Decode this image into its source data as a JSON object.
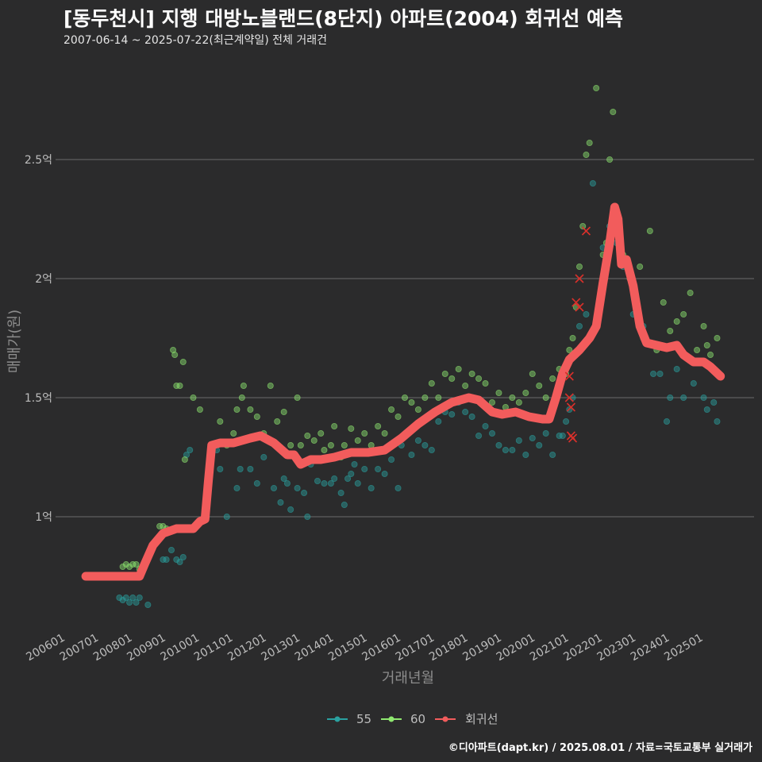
{
  "header": {
    "title": "[동두천시] 지행 대방노블랜드(8단지) 아파트(2004) 회귀선 예측",
    "subtitle": "2007-06-14 ~ 2025-07-22(최근계약일) 전체 거래건"
  },
  "footer": {
    "credit": "©디아파트(dapt.kr) / 2025.08.01 / 자료=국토교통부 실거래가"
  },
  "colors": {
    "background": "#2b2b2c",
    "grid": "#6b6b6b",
    "s55": "#2aa1a0",
    "s60": "#8fe870",
    "trend": "#f25c5c"
  },
  "chart_data": {
    "type": "scatter",
    "title": "[동두천시] 지행 대방노블랜드(8단지) 아파트(2004) 회귀선 예측",
    "xlabel": "거래년월",
    "ylabel": "매매가(원)",
    "xlim": [
      2005.7,
      2026.5
    ],
    "ylim": [
      0.52,
      2.87
    ],
    "y_unit": "억",
    "yticks": [
      {
        "value": 1.0,
        "label": "1억"
      },
      {
        "value": 1.5,
        "label": "1.5억"
      },
      {
        "value": 2.0,
        "label": "2억"
      },
      {
        "value": 2.5,
        "label": "2.5억"
      }
    ],
    "xticks": [
      {
        "value": 2006.0,
        "label": "200601"
      },
      {
        "value": 2007.0,
        "label": "200701"
      },
      {
        "value": 2008.0,
        "label": "200801"
      },
      {
        "value": 2009.0,
        "label": "200901"
      },
      {
        "value": 2010.0,
        "label": "201001"
      },
      {
        "value": 2011.0,
        "label": "201101"
      },
      {
        "value": 2012.0,
        "label": "201201"
      },
      {
        "value": 2013.0,
        "label": "201301"
      },
      {
        "value": 2014.0,
        "label": "201401"
      },
      {
        "value": 2015.0,
        "label": "201501"
      },
      {
        "value": 2016.0,
        "label": "201601"
      },
      {
        "value": 2017.0,
        "label": "201701"
      },
      {
        "value": 2018.0,
        "label": "201801"
      },
      {
        "value": 2019.0,
        "label": "201901"
      },
      {
        "value": 2020.0,
        "label": "202001"
      },
      {
        "value": 2021.0,
        "label": "202101"
      },
      {
        "value": 2022.0,
        "label": "202201"
      },
      {
        "value": 2023.0,
        "label": "202301"
      },
      {
        "value": 2024.0,
        "label": "202401"
      },
      {
        "value": 2025.0,
        "label": "202501"
      }
    ],
    "legend": [
      {
        "name": "55",
        "color": "#2aa1a0"
      },
      {
        "name": "60",
        "color": "#8fe870"
      },
      {
        "name": "회귀선",
        "color": "#f25c5c"
      }
    ],
    "series": [
      {
        "name": "55",
        "points": [
          [
            2007.6,
            0.66
          ],
          [
            2007.7,
            0.65
          ],
          [
            2007.8,
            0.66
          ],
          [
            2007.9,
            0.64
          ],
          [
            2008.0,
            0.66
          ],
          [
            2008.1,
            0.64
          ],
          [
            2008.2,
            0.66
          ],
          [
            2008.45,
            0.63
          ],
          [
            2008.9,
            0.82
          ],
          [
            2009.0,
            0.82
          ],
          [
            2009.15,
            0.86
          ],
          [
            2009.3,
            0.82
          ],
          [
            2009.4,
            0.81
          ],
          [
            2009.5,
            0.83
          ],
          [
            2009.6,
            1.26
          ],
          [
            2009.7,
            1.28
          ],
          [
            2010.5,
            1.28
          ],
          [
            2010.6,
            1.2
          ],
          [
            2010.8,
            1.0
          ],
          [
            2011.1,
            1.12
          ],
          [
            2011.2,
            1.2
          ],
          [
            2011.5,
            1.2
          ],
          [
            2011.7,
            1.14
          ],
          [
            2011.9,
            1.25
          ],
          [
            2012.2,
            1.12
          ],
          [
            2012.4,
            1.06
          ],
          [
            2012.5,
            1.16
          ],
          [
            2012.6,
            1.14
          ],
          [
            2012.7,
            1.03
          ],
          [
            2012.9,
            1.12
          ],
          [
            2013.1,
            1.1
          ],
          [
            2013.2,
            1.0
          ],
          [
            2013.3,
            1.22
          ],
          [
            2013.5,
            1.15
          ],
          [
            2013.7,
            1.14
          ],
          [
            2013.9,
            1.14
          ],
          [
            2014.0,
            1.16
          ],
          [
            2014.2,
            1.1
          ],
          [
            2014.3,
            1.05
          ],
          [
            2014.4,
            1.16
          ],
          [
            2014.5,
            1.18
          ],
          [
            2014.6,
            1.22
          ],
          [
            2014.7,
            1.14
          ],
          [
            2014.9,
            1.2
          ],
          [
            2015.1,
            1.12
          ],
          [
            2015.3,
            1.2
          ],
          [
            2015.5,
            1.18
          ],
          [
            2015.7,
            1.24
          ],
          [
            2015.9,
            1.12
          ],
          [
            2016.0,
            1.3
          ],
          [
            2016.3,
            1.26
          ],
          [
            2016.5,
            1.32
          ],
          [
            2016.7,
            1.3
          ],
          [
            2016.9,
            1.28
          ],
          [
            2017.1,
            1.4
          ],
          [
            2017.3,
            1.44
          ],
          [
            2017.5,
            1.43
          ],
          [
            2017.7,
            1.48
          ],
          [
            2017.9,
            1.44
          ],
          [
            2018.1,
            1.42
          ],
          [
            2018.3,
            1.34
          ],
          [
            2018.5,
            1.38
          ],
          [
            2018.7,
            1.35
          ],
          [
            2018.9,
            1.3
          ],
          [
            2019.1,
            1.28
          ],
          [
            2019.3,
            1.28
          ],
          [
            2019.5,
            1.32
          ],
          [
            2019.7,
            1.26
          ],
          [
            2019.9,
            1.33
          ],
          [
            2020.1,
            1.3
          ],
          [
            2020.3,
            1.35
          ],
          [
            2020.5,
            1.26
          ],
          [
            2020.7,
            1.34
          ],
          [
            2020.8,
            1.34
          ],
          [
            2020.9,
            1.4
          ],
          [
            2021.0,
            1.45
          ],
          [
            2021.1,
            1.5
          ],
          [
            2021.3,
            1.8
          ],
          [
            2021.5,
            1.85
          ],
          [
            2021.7,
            2.4
          ],
          [
            2022.0,
            2.13
          ],
          [
            2022.2,
            2.22
          ],
          [
            2022.4,
            2.15
          ],
          [
            2022.6,
            2.05
          ],
          [
            2022.9,
            1.85
          ],
          [
            2023.2,
            1.8
          ],
          [
            2023.5,
            1.6
          ],
          [
            2023.7,
            1.6
          ],
          [
            2023.9,
            1.4
          ],
          [
            2024.0,
            1.5
          ],
          [
            2024.2,
            1.62
          ],
          [
            2024.4,
            1.5
          ],
          [
            2024.7,
            1.56
          ],
          [
            2025.0,
            1.5
          ],
          [
            2025.1,
            1.45
          ],
          [
            2025.3,
            1.48
          ],
          [
            2025.4,
            1.4
          ]
        ]
      },
      {
        "name": "60",
        "points": [
          [
            2007.7,
            0.79
          ],
          [
            2007.8,
            0.8
          ],
          [
            2007.9,
            0.79
          ],
          [
            2008.0,
            0.8
          ],
          [
            2008.1,
            0.8
          ],
          [
            2008.2,
            0.78
          ],
          [
            2008.3,
            0.79
          ],
          [
            2008.8,
            0.96
          ],
          [
            2008.9,
            0.96
          ],
          [
            2009.0,
            0.95
          ],
          [
            2009.2,
            1.7
          ],
          [
            2009.25,
            1.68
          ],
          [
            2009.3,
            1.55
          ],
          [
            2009.4,
            1.55
          ],
          [
            2009.5,
            1.65
          ],
          [
            2009.55,
            1.24
          ],
          [
            2009.8,
            1.5
          ],
          [
            2010.0,
            1.45
          ],
          [
            2010.6,
            1.4
          ],
          [
            2010.8,
            1.3
          ],
          [
            2011.0,
            1.35
          ],
          [
            2011.1,
            1.45
          ],
          [
            2011.25,
            1.5
          ],
          [
            2011.3,
            1.55
          ],
          [
            2011.5,
            1.45
          ],
          [
            2011.7,
            1.42
          ],
          [
            2011.9,
            1.35
          ],
          [
            2012.1,
            1.55
          ],
          [
            2012.3,
            1.4
          ],
          [
            2012.5,
            1.44
          ],
          [
            2012.7,
            1.3
          ],
          [
            2012.9,
            1.5
          ],
          [
            2013.0,
            1.3
          ],
          [
            2013.2,
            1.34
          ],
          [
            2013.4,
            1.32
          ],
          [
            2013.6,
            1.35
          ],
          [
            2013.7,
            1.28
          ],
          [
            2013.9,
            1.3
          ],
          [
            2014.0,
            1.38
          ],
          [
            2014.2,
            1.25
          ],
          [
            2014.3,
            1.3
          ],
          [
            2014.5,
            1.37
          ],
          [
            2014.7,
            1.32
          ],
          [
            2014.9,
            1.35
          ],
          [
            2015.1,
            1.3
          ],
          [
            2015.3,
            1.38
          ],
          [
            2015.5,
            1.35
          ],
          [
            2015.7,
            1.45
          ],
          [
            2015.9,
            1.42
          ],
          [
            2016.1,
            1.5
          ],
          [
            2016.3,
            1.48
          ],
          [
            2016.5,
            1.45
          ],
          [
            2016.7,
            1.5
          ],
          [
            2016.9,
            1.56
          ],
          [
            2017.1,
            1.5
          ],
          [
            2017.3,
            1.6
          ],
          [
            2017.5,
            1.58
          ],
          [
            2017.7,
            1.62
          ],
          [
            2017.9,
            1.55
          ],
          [
            2018.1,
            1.6
          ],
          [
            2018.3,
            1.58
          ],
          [
            2018.5,
            1.56
          ],
          [
            2018.7,
            1.48
          ],
          [
            2018.9,
            1.52
          ],
          [
            2019.1,
            1.46
          ],
          [
            2019.3,
            1.5
          ],
          [
            2019.5,
            1.48
          ],
          [
            2019.7,
            1.52
          ],
          [
            2019.9,
            1.6
          ],
          [
            2020.1,
            1.55
          ],
          [
            2020.3,
            1.5
          ],
          [
            2020.5,
            1.58
          ],
          [
            2020.7,
            1.62
          ],
          [
            2020.9,
            1.6
          ],
          [
            2021.0,
            1.7
          ],
          [
            2021.1,
            1.75
          ],
          [
            2021.2,
            1.88
          ],
          [
            2021.3,
            2.05
          ],
          [
            2021.4,
            2.22
          ],
          [
            2021.5,
            2.52
          ],
          [
            2021.6,
            2.57
          ],
          [
            2021.8,
            2.8
          ],
          [
            2022.0,
            2.1
          ],
          [
            2022.1,
            2.15
          ],
          [
            2022.2,
            2.5
          ],
          [
            2022.3,
            2.7
          ],
          [
            2022.4,
            2.24
          ],
          [
            2022.6,
            2.1
          ],
          [
            2022.8,
            2.0
          ],
          [
            2023.0,
            1.9
          ],
          [
            2023.1,
            2.05
          ],
          [
            2023.2,
            1.75
          ],
          [
            2023.4,
            2.2
          ],
          [
            2023.6,
            1.7
          ],
          [
            2023.8,
            1.9
          ],
          [
            2024.0,
            1.78
          ],
          [
            2024.2,
            1.82
          ],
          [
            2024.4,
            1.85
          ],
          [
            2024.6,
            1.94
          ],
          [
            2024.8,
            1.7
          ],
          [
            2025.0,
            1.8
          ],
          [
            2025.1,
            1.72
          ],
          [
            2025.2,
            1.68
          ],
          [
            2025.4,
            1.75
          ]
        ]
      }
    ],
    "trend": [
      [
        2006.6,
        0.75
      ],
      [
        2007.0,
        0.75
      ],
      [
        2007.5,
        0.75
      ],
      [
        2008.0,
        0.75
      ],
      [
        2008.2,
        0.75
      ],
      [
        2008.35,
        0.8
      ],
      [
        2008.6,
        0.88
      ],
      [
        2008.9,
        0.93
      ],
      [
        2009.3,
        0.95
      ],
      [
        2009.8,
        0.95
      ],
      [
        2010.0,
        0.98
      ],
      [
        2010.15,
        0.99
      ],
      [
        2010.25,
        1.15
      ],
      [
        2010.35,
        1.3
      ],
      [
        2010.6,
        1.31
      ],
      [
        2011.0,
        1.31
      ],
      [
        2011.5,
        1.33
      ],
      [
        2011.8,
        1.34
      ],
      [
        2012.2,
        1.31
      ],
      [
        2012.6,
        1.26
      ],
      [
        2012.8,
        1.26
      ],
      [
        2013.0,
        1.22
      ],
      [
        2013.3,
        1.24
      ],
      [
        2013.6,
        1.24
      ],
      [
        2014.0,
        1.25
      ],
      [
        2014.5,
        1.27
      ],
      [
        2015.0,
        1.27
      ],
      [
        2015.5,
        1.28
      ],
      [
        2016.0,
        1.33
      ],
      [
        2016.5,
        1.39
      ],
      [
        2017.0,
        1.44
      ],
      [
        2017.5,
        1.48
      ],
      [
        2018.0,
        1.5
      ],
      [
        2018.3,
        1.49
      ],
      [
        2018.7,
        1.44
      ],
      [
        2019.0,
        1.43
      ],
      [
        2019.4,
        1.44
      ],
      [
        2019.8,
        1.42
      ],
      [
        2020.2,
        1.41
      ],
      [
        2020.4,
        1.41
      ],
      [
        2020.6,
        1.5
      ],
      [
        2020.8,
        1.6
      ],
      [
        2021.0,
        1.66
      ],
      [
        2021.3,
        1.7
      ],
      [
        2021.6,
        1.75
      ],
      [
        2021.8,
        1.8
      ],
      [
        2022.0,
        1.98
      ],
      [
        2022.2,
        2.15
      ],
      [
        2022.35,
        2.3
      ],
      [
        2022.45,
        2.25
      ],
      [
        2022.55,
        2.06
      ],
      [
        2022.7,
        2.08
      ],
      [
        2022.9,
        1.97
      ],
      [
        2023.1,
        1.8
      ],
      [
        2023.3,
        1.73
      ],
      [
        2023.6,
        1.72
      ],
      [
        2023.9,
        1.71
      ],
      [
        2024.2,
        1.72
      ],
      [
        2024.4,
        1.68
      ],
      [
        2024.7,
        1.65
      ],
      [
        2025.0,
        1.65
      ],
      [
        2025.2,
        1.63
      ],
      [
        2025.5,
        1.59
      ]
    ],
    "outliers_x": [
      [
        2021.0,
        1.59
      ],
      [
        2021.0,
        1.5
      ],
      [
        2021.05,
        1.46
      ],
      [
        2021.05,
        1.34
      ],
      [
        2021.1,
        1.33
      ],
      [
        2021.2,
        1.9
      ],
      [
        2021.3,
        1.88
      ],
      [
        2021.3,
        2.0
      ],
      [
        2021.5,
        2.2
      ]
    ]
  }
}
